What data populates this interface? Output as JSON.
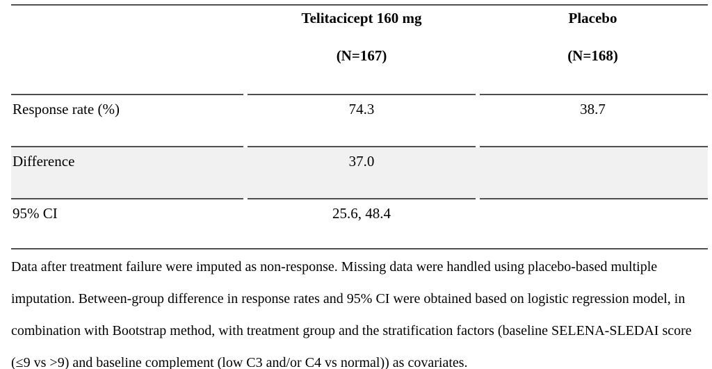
{
  "table": {
    "header": {
      "treatment_line1": "Telitacicept 160 mg",
      "treatment_line2": "(N=167)",
      "placebo_line1": "Placebo",
      "placebo_line2": "(N=168)"
    },
    "rows": [
      {
        "label": "Response rate (%)",
        "treatment_value": "74.3",
        "placebo_value": "38.7"
      },
      {
        "label": "Difference",
        "treatment_value": "37.0",
        "placebo_value": ""
      },
      {
        "label": "95% CI",
        "treatment_value": "25.6, 48.4",
        "placebo_value": ""
      }
    ],
    "footnote": "Data after treatment failure were imputed as non-response. Missing data were handled using placebo-based multiple imputation. Between-group difference in response rates and 95% CI were obtained based on logistic regression model, in combination with Bootstrap method, with treatment group and the stratification factors (baseline SELENA-SLEDAI score (≤9 vs >9) and baseline complement (low C3 and/or C4 vs normal)) as covariates."
  },
  "colors": {
    "shaded_row_bg": "#f1f1f1",
    "rule_line": "#4f4f4f"
  }
}
